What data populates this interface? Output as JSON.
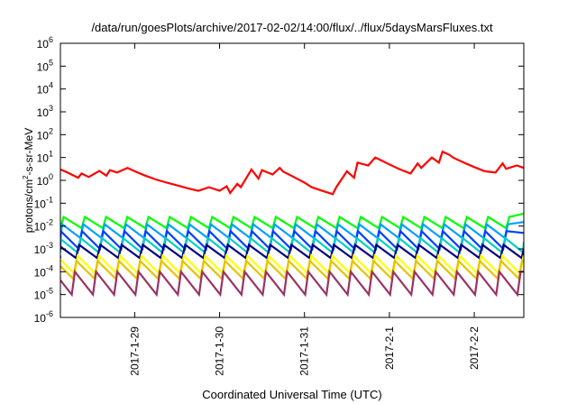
{
  "chart_data": {
    "type": "line",
    "title": "/data/run/goesPlots/archive/2017-02-02/14:00/flux/../flux/5daysMarsFluxes.txt",
    "xlabel": "Coordinated Universal Time (UTC)",
    "ylabel": "protons/cm²-s-sr-MeV",
    "yscale": "log",
    "ylim": [
      1e-06,
      1000000.0
    ],
    "ytick_exponents": [
      -6,
      -5,
      -4,
      -3,
      -2,
      -1,
      0,
      1,
      2,
      3,
      4,
      5,
      6
    ],
    "ytick_base": "10",
    "xlim": [
      "2017-01-28T03:00",
      "2017-02-02T14:00"
    ],
    "xticks": [
      {
        "at": "2017-01-29T00:00",
        "label": "2017-1-29"
      },
      {
        "at": "2017-01-30T00:00",
        "label": "2017-1-30"
      },
      {
        "at": "2017-01-31T00:00",
        "label": "2017-1-31"
      },
      {
        "at": "2017-02-01T00:00",
        "label": "2017-2-1"
      },
      {
        "at": "2017-02-02T00:00",
        "label": "2017-2-2"
      }
    ],
    "grid": false,
    "series": [
      {
        "color": "#ff0000",
        "x": [
          "2017-01-28T03:00",
          "2017-01-28T05:00",
          "2017-01-28T08:00",
          "2017-01-28T09:00",
          "2017-01-28T11:00",
          "2017-01-28T14:00",
          "2017-01-28T16:00",
          "2017-01-28T17:00",
          "2017-01-28T19:00",
          "2017-01-28T22:00",
          "2017-01-29T00:00",
          "2017-01-29T03:00",
          "2017-01-29T06:00",
          "2017-01-29T09:00",
          "2017-01-29T12:00",
          "2017-01-29T15:00",
          "2017-01-29T18:00",
          "2017-01-29T21:00",
          "2017-01-30T00:00",
          "2017-01-30T02:00",
          "2017-01-30T03:00",
          "2017-01-30T05:00",
          "2017-01-30T06:00",
          "2017-01-30T09:00",
          "2017-01-30T11:00",
          "2017-01-30T12:00",
          "2017-01-30T15:00",
          "2017-01-30T17:00",
          "2017-01-30T18:00",
          "2017-01-30T21:00",
          "2017-01-31T00:00",
          "2017-01-31T02:00",
          "2017-01-31T05:00",
          "2017-01-31T08:00",
          "2017-01-31T09:00",
          "2017-01-31T12:00",
          "2017-01-31T14:00",
          "2017-01-31T15:00",
          "2017-01-31T18:00",
          "2017-01-31T20:00",
          "2017-01-31T21:00",
          "2017-02-01T00:00",
          "2017-02-01T03:00",
          "2017-02-01T06:00",
          "2017-02-01T08:00",
          "2017-02-01T09:00",
          "2017-02-01T12:00",
          "2017-02-01T14:00",
          "2017-02-01T15:00",
          "2017-02-01T17:00",
          "2017-02-01T18:00",
          "2017-02-01T21:00",
          "2017-02-02T00:00",
          "2017-02-02T03:00",
          "2017-02-02T06:00",
          "2017-02-02T08:00",
          "2017-02-02T09:00",
          "2017-02-02T12:00",
          "2017-02-02T14:00"
        ],
        "y": [
          3.0,
          2.2,
          1.3,
          2.0,
          1.4,
          2.6,
          1.6,
          2.8,
          2.2,
          3.5,
          2.5,
          1.6,
          1.1,
          0.8,
          0.6,
          0.45,
          0.35,
          0.5,
          0.35,
          0.55,
          0.28,
          0.7,
          0.5,
          3.0,
          1.2,
          2.8,
          1.8,
          3.5,
          2.4,
          1.4,
          0.8,
          0.5,
          0.35,
          0.25,
          0.5,
          2.5,
          1.3,
          6.0,
          4.5,
          10.0,
          8.5,
          5.0,
          3.0,
          2.0,
          5.5,
          3.5,
          10.0,
          6.0,
          18.0,
          13.0,
          10.0,
          6.0,
          3.8,
          2.5,
          2.2,
          5.5,
          3.2,
          4.5,
          3.5
        ]
      },
      {
        "color": "#00ff00",
        "low": 0.008,
        "high": 0.025,
        "period_hours": 6,
        "phase_hours": 0,
        "x_start": "2017-01-28T03:00",
        "x_end": "2017-02-02T14:00",
        "end_value": 0.035
      },
      {
        "color": "#00a0ff",
        "low": 0.003,
        "high": 0.012,
        "period_hours": 6,
        "phase_hours": 0.4,
        "x_start": "2017-01-28T03:00",
        "x_end": "2017-02-02T14:00",
        "end_value": 0.015
      },
      {
        "color": "#0040ff",
        "low": 0.001,
        "high": 0.006,
        "period_hours": 6,
        "phase_hours": 0.8,
        "x_start": "2017-01-28T03:00",
        "x_end": "2017-02-02T14:00",
        "end_value": 0.005
      },
      {
        "color": "#00d0c0",
        "low": 0.0007,
        "high": 0.003,
        "period_hours": 6,
        "phase_hours": 1.2,
        "x_start": "2017-01-28T03:00",
        "x_end": "2017-02-02T14:00",
        "end_value": 0.002
      },
      {
        "color": "#000080",
        "low": 0.0004,
        "high": 0.0015,
        "period_hours": 6,
        "phase_hours": 1.6,
        "x_start": "2017-01-28T03:00",
        "x_end": "2017-02-02T14:00",
        "end_value": 0.001
      },
      {
        "color": "#ffff00",
        "low": 8e-05,
        "high": 0.0005,
        "period_hours": 6,
        "phase_hours": 2.0,
        "x_start": "2017-01-28T03:00",
        "x_end": "2017-02-02T14:00",
        "end_value": 0.0004
      },
      {
        "color": "#e8c000",
        "low": 5e-05,
        "high": 0.0003,
        "period_hours": 6,
        "phase_hours": 2.4,
        "x_start": "2017-01-28T03:00",
        "x_end": "2017-02-02T14:00",
        "end_value": 0.0003
      },
      {
        "color": "#993366",
        "low": 1e-05,
        "high": 0.0001,
        "period_hours": 6,
        "phase_hours": 2.8,
        "x_start": "2017-01-28T03:00",
        "x_end": "2017-02-02T14:00",
        "end_value": 0.0001
      }
    ]
  }
}
